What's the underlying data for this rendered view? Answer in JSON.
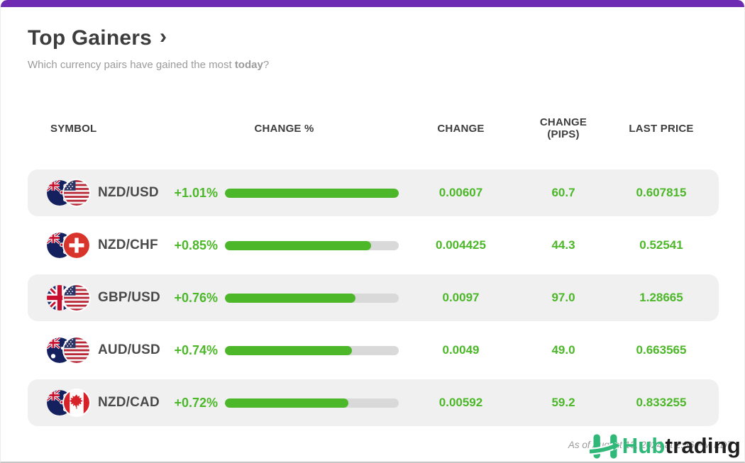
{
  "page": {
    "title": "Top Gainers",
    "title_chevron": "›",
    "subtitle_prefix": "Which currency pairs have gained the most ",
    "subtitle_bold": "today",
    "subtitle_suffix": "?"
  },
  "table": {
    "columns": [
      "SYMBOL",
      "CHANGE %",
      "CHANGE",
      "CHANGE (PIPS)",
      "LAST PRICE"
    ],
    "rows": [
      {
        "pair": "NZD/USD",
        "flags": [
          "nz",
          "us"
        ],
        "change_pct": "+1.01%",
        "bar_fill_pct": 100,
        "change": "0.00607",
        "change_pips": "60.7",
        "last_price": "0.607815"
      },
      {
        "pair": "NZD/CHF",
        "flags": [
          "nz",
          "ch"
        ],
        "change_pct": "+0.85%",
        "bar_fill_pct": 84,
        "change": "0.004425",
        "change_pips": "44.3",
        "last_price": "0.52541"
      },
      {
        "pair": "GBP/USD",
        "flags": [
          "gb",
          "us"
        ],
        "change_pct": "+0.76%",
        "bar_fill_pct": 75,
        "change": "0.0097",
        "change_pips": "97.0",
        "last_price": "1.28665"
      },
      {
        "pair": "AUD/USD",
        "flags": [
          "au",
          "us"
        ],
        "change_pct": "+0.74%",
        "bar_fill_pct": 73,
        "change": "0.0049",
        "change_pips": "49.0",
        "last_price": "0.663565"
      },
      {
        "pair": "NZD/CAD",
        "flags": [
          "nz",
          "ca"
        ],
        "change_pct": "+0.72%",
        "bar_fill_pct": 71,
        "change": "0.00592",
        "change_pips": "59.2",
        "last_price": "0.833255"
      }
    ]
  },
  "footer": {
    "timestamp": "As of August 13, 2024 at 2:56 PM EDT",
    "logo_hub": "Hub",
    "logo_trading": "trading"
  },
  "colors": {
    "accent_purple": "#6c2bb2",
    "gain_green": "#4cb728",
    "bar_track": "#d9d9d9",
    "logo_green": "#2fb878"
  }
}
